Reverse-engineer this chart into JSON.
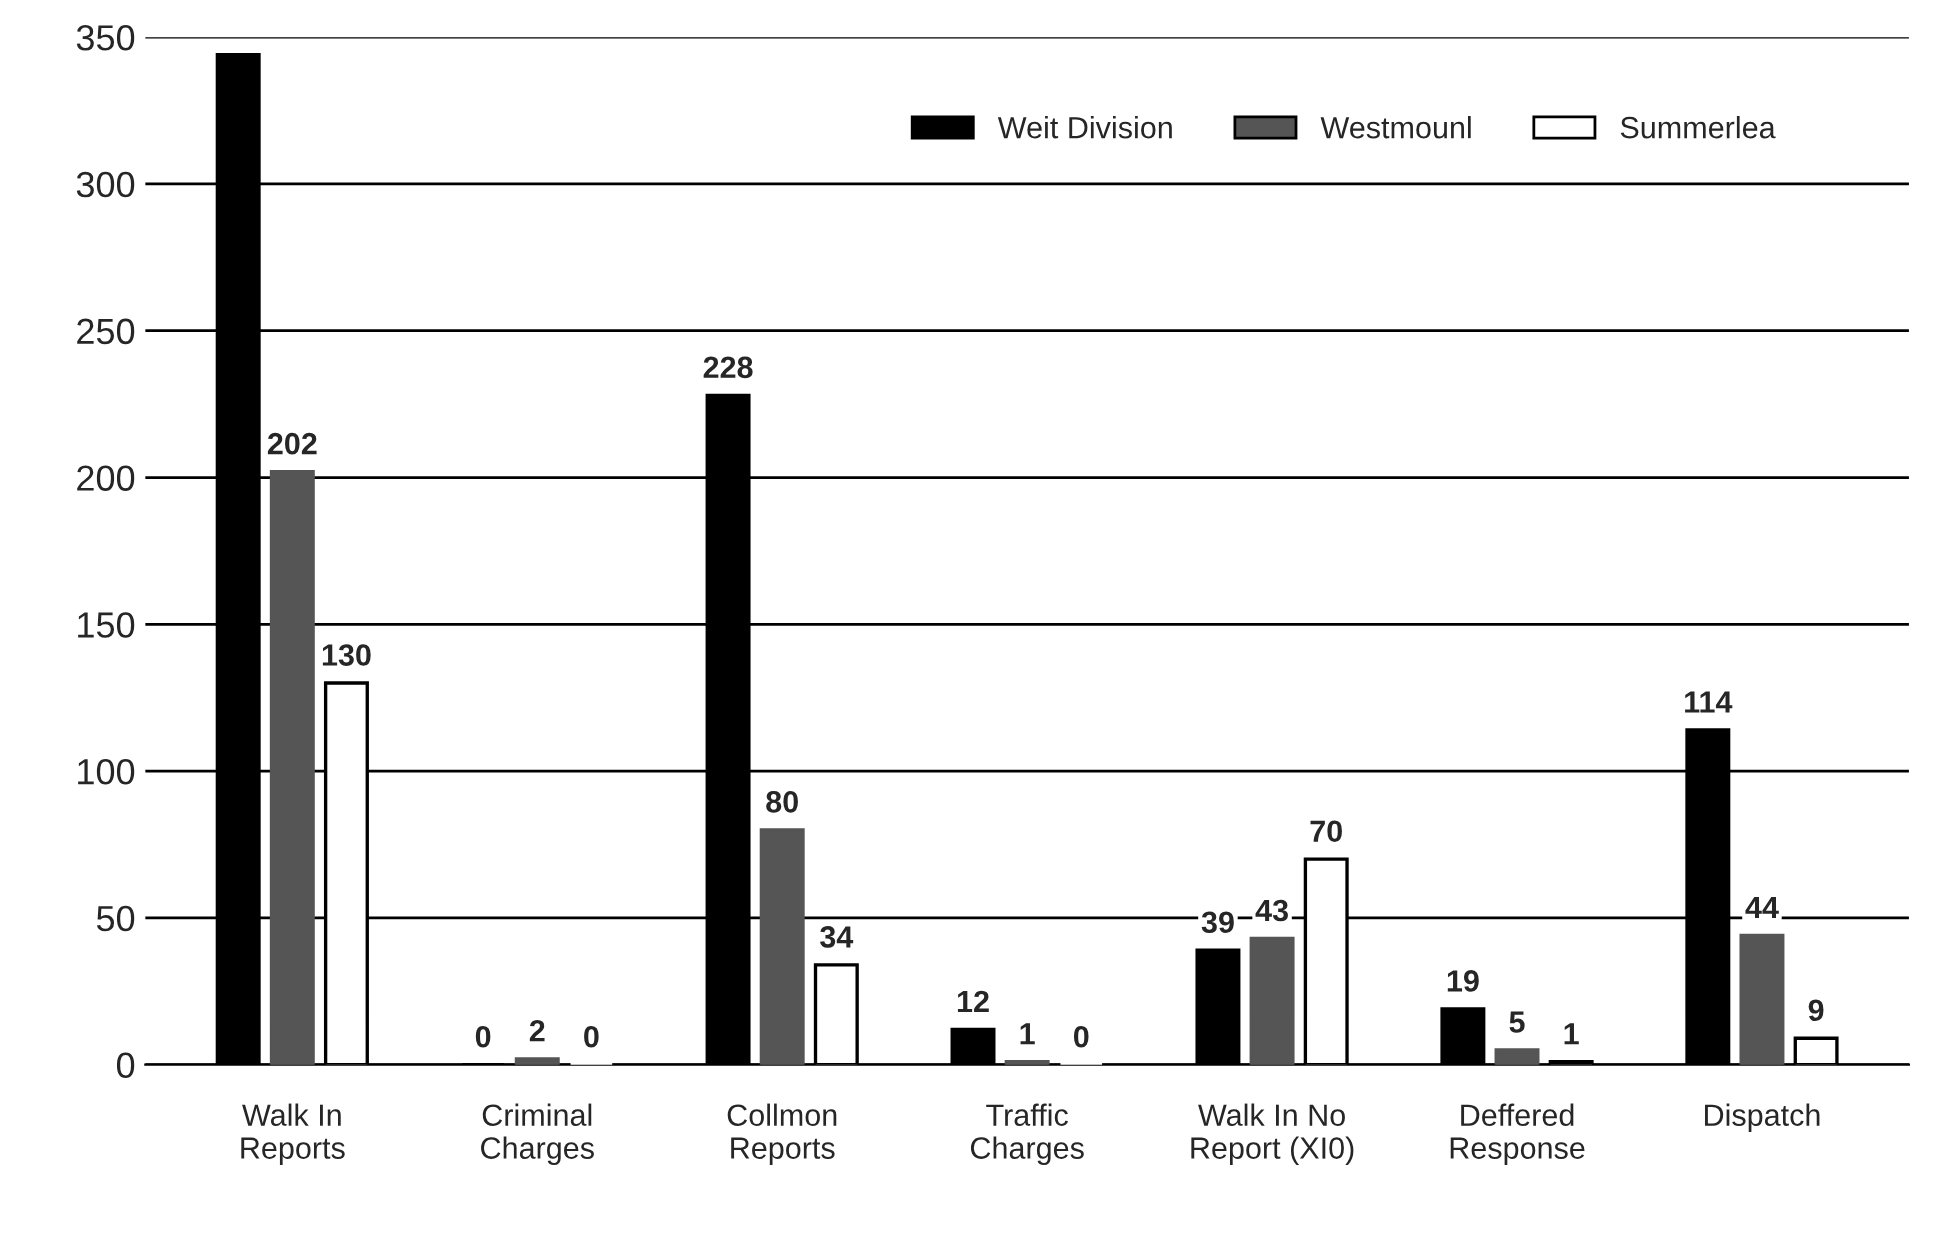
{
  "chart_data": {
    "type": "bar",
    "categories": [
      "Walk In\nReports",
      "Criminal\nCharges",
      "Collmon\nReports",
      "Traffic\nCharges",
      "Walk In No\nReport (XI0)",
      "Deffered\nResponse",
      "Dispatch"
    ],
    "series": [
      {
        "name": "Weit Division",
        "color": "#000000",
        "values": [
          344,
          0,
          228,
          12,
          39,
          19,
          114
        ],
        "value_labels": [
          null,
          "0",
          "228",
          "12",
          "39",
          "19",
          "114"
        ]
      },
      {
        "name": "Westmounl",
        "color": "#555555",
        "values": [
          202,
          2,
          80,
          1,
          43,
          5,
          44
        ],
        "value_labels": [
          "202",
          "2",
          "80",
          "1",
          "43",
          "5",
          "44"
        ]
      },
      {
        "name": "Summerlea",
        "color": "#ffffff",
        "values": [
          130,
          0,
          34,
          0,
          70,
          1,
          9
        ],
        "value_labels": [
          "130",
          "0",
          "34",
          "0",
          "70",
          "1",
          "9"
        ]
      }
    ],
    "ylim": [
      0,
      350
    ],
    "yticks": [
      0,
      50,
      100,
      150,
      200,
      250,
      300,
      350
    ],
    "grid": "y",
    "legend": "top right"
  }
}
